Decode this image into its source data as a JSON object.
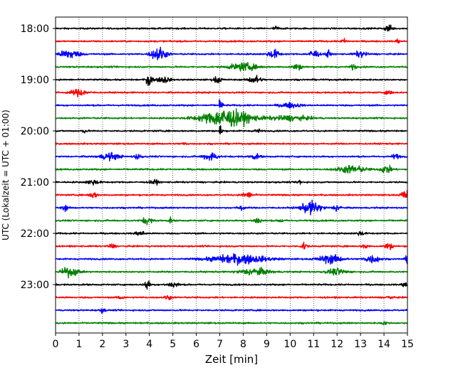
{
  "chart_data": {
    "type": "line",
    "title": "",
    "xlabel": "Zeit  [min]",
    "ylabel": "UTC (Lokalzeit = UTC + 01:00)",
    "xlim": [
      0,
      15
    ],
    "x_ticks": [
      "0",
      "1",
      "2",
      "3",
      "4",
      "5",
      "6",
      "7",
      "8",
      "9",
      "10",
      "11",
      "12",
      "13",
      "14",
      "15"
    ],
    "y_tick_labels": [
      "18:00",
      "19:00",
      "20:00",
      "21:00",
      "22:00",
      "23:00"
    ],
    "row_interval_min": 15,
    "start_time": "18:00",
    "trace_colors": [
      "#000000",
      "#ff0000",
      "#0000ff",
      "#008000"
    ],
    "grid": "vertical dotted at each minute",
    "traces": [
      {
        "time": "18:00",
        "color_index": 0,
        "bursts": [
          [
            9.4,
            0.3,
            0.25
          ],
          [
            14.2,
            0.4,
            0.4
          ]
        ]
      },
      {
        "time": "18:15",
        "color_index": 1,
        "bursts": [
          [
            12.3,
            0.3,
            0.25
          ],
          [
            14.6,
            0.2,
            0.3
          ]
        ]
      },
      {
        "time": "18:30",
        "color_index": 2,
        "bursts": [
          [
            0.6,
            1.0,
            0.55
          ],
          [
            4.4,
            0.8,
            0.8
          ],
          [
            9.3,
            0.6,
            0.5
          ],
          [
            11.0,
            0.5,
            0.55
          ],
          [
            11.6,
            0.2,
            0.7
          ],
          [
            13.0,
            0.6,
            0.35
          ]
        ]
      },
      {
        "time": "18:45",
        "color_index": 3,
        "bursts": [
          [
            8.0,
            1.4,
            0.45
          ],
          [
            10.3,
            0.5,
            0.35
          ],
          [
            12.7,
            0.3,
            0.3
          ]
        ]
      },
      {
        "time": "19:00",
        "color_index": 0,
        "bursts": [
          [
            4.0,
            0.3,
            0.95
          ],
          [
            4.6,
            0.6,
            0.4
          ],
          [
            6.9,
            0.4,
            0.4
          ],
          [
            8.5,
            0.6,
            0.5
          ]
        ]
      },
      {
        "time": "19:15",
        "color_index": 1,
        "bursts": [
          [
            1.0,
            0.8,
            0.4
          ],
          [
            14.2,
            0.3,
            0.35
          ]
        ]
      },
      {
        "time": "19:30",
        "color_index": 2,
        "bursts": [
          [
            10.0,
            1.0,
            0.3
          ]
        ]
      },
      {
        "time": "19:45",
        "color_index": 3,
        "bursts": [
          [
            7.3,
            2.6,
            1.0
          ],
          [
            10.0,
            2.0,
            0.3
          ]
        ]
      },
      {
        "time": "20:00",
        "color_index": 0,
        "bursts": [
          [
            1.2,
            0.3,
            0.2
          ],
          [
            8.6,
            0.3,
            0.25
          ]
        ]
      },
      {
        "time": "20:15",
        "color_index": 1,
        "bursts": [
          [
            5.5,
            0.3,
            0.15
          ]
        ]
      },
      {
        "time": "20:30",
        "color_index": 2,
        "bursts": [
          [
            2.3,
            1.0,
            0.4
          ],
          [
            3.5,
            0.4,
            0.3
          ],
          [
            6.6,
            0.7,
            0.5
          ],
          [
            8.5,
            0.5,
            0.3
          ],
          [
            14.5,
            0.4,
            0.3
          ]
        ]
      },
      {
        "time": "20:45",
        "color_index": 3,
        "bursts": [
          [
            12.6,
            1.4,
            0.45
          ],
          [
            14.1,
            0.6,
            0.45
          ]
        ]
      },
      {
        "time": "21:00",
        "color_index": 0,
        "bursts": [
          [
            1.6,
            0.6,
            0.3
          ],
          [
            4.2,
            0.4,
            0.3
          ],
          [
            10.4,
            0.2,
            0.35
          ]
        ]
      },
      {
        "time": "21:15",
        "color_index": 1,
        "bursts": [
          [
            1.6,
            0.4,
            0.35
          ],
          [
            8.2,
            0.6,
            0.3
          ],
          [
            14.9,
            0.4,
            0.6
          ]
        ]
      },
      {
        "time": "21:30",
        "color_index": 2,
        "bursts": [
          [
            0.4,
            0.3,
            0.35
          ],
          [
            7.9,
            0.3,
            0.35
          ],
          [
            10.9,
            1.0,
            0.75
          ],
          [
            12.0,
            0.4,
            0.4
          ]
        ]
      },
      {
        "time": "21:45",
        "color_index": 3,
        "bursts": [
          [
            3.9,
            0.5,
            0.4
          ],
          [
            4.9,
            0.2,
            0.3
          ],
          [
            8.6,
            0.4,
            0.4
          ],
          [
            9.6,
            0.2,
            0.3
          ]
        ]
      },
      {
        "time": "22:00",
        "color_index": 0,
        "bursts": [
          [
            3.6,
            0.5,
            0.3
          ],
          [
            13.0,
            0.4,
            0.25
          ]
        ]
      },
      {
        "time": "22:15",
        "color_index": 1,
        "bursts": [
          [
            2.4,
            0.3,
            0.3
          ],
          [
            10.6,
            0.3,
            0.45
          ],
          [
            13.2,
            0.3,
            0.3
          ],
          [
            14.2,
            0.4,
            0.4
          ]
        ]
      },
      {
        "time": "22:30",
        "color_index": 2,
        "bursts": [
          [
            7.8,
            2.8,
            0.55
          ],
          [
            11.7,
            1.2,
            0.5
          ],
          [
            13.5,
            0.8,
            0.45
          ],
          [
            15.0,
            0.2,
            0.5
          ]
        ]
      },
      {
        "time": "22:45",
        "color_index": 3,
        "bursts": [
          [
            0.6,
            0.9,
            0.5
          ],
          [
            8.5,
            1.5,
            0.4
          ],
          [
            12.0,
            1.0,
            0.35
          ]
        ]
      },
      {
        "time": "23:00",
        "color_index": 0,
        "bursts": [
          [
            3.9,
            0.3,
            0.55
          ],
          [
            5.0,
            0.6,
            0.3
          ],
          [
            14.9,
            0.3,
            0.45
          ]
        ]
      },
      {
        "time": "23:15",
        "color_index": 1,
        "bursts": [
          [
            2.8,
            0.3,
            0.3
          ],
          [
            4.8,
            0.3,
            0.35
          ],
          [
            14.2,
            0.3,
            0.2
          ]
        ]
      },
      {
        "time": "23:30",
        "color_index": 2,
        "bursts": [
          [
            2.0,
            0.3,
            0.25
          ]
        ]
      },
      {
        "time": "23:45",
        "color_index": 3,
        "bursts": [
          [
            14.0,
            0.3,
            0.2
          ]
        ]
      }
    ]
  }
}
